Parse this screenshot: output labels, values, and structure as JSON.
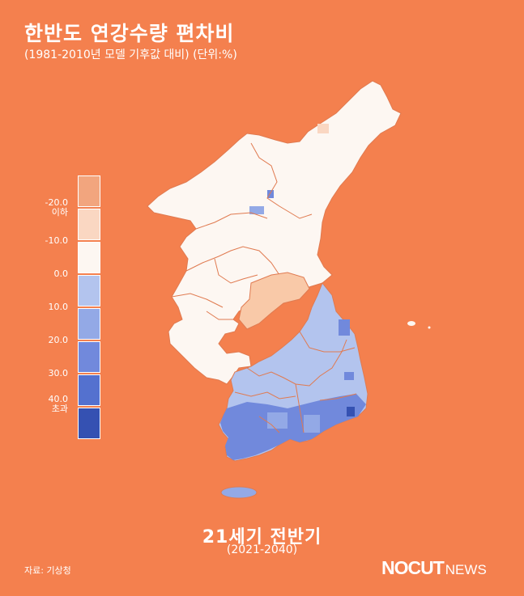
{
  "title": "한반도 연강수량 편차비",
  "subtitle": "(1981-2010년 모델 기후값 대비) (단위:%)",
  "legend": {
    "colors": [
      "#F2A57E",
      "#FAD7C2",
      "#FDF7F2",
      "#B3C4EE",
      "#93A9E6",
      "#7189DC",
      "#5471CF",
      "#3551B2"
    ],
    "labels": [
      {
        "text": "-20.0",
        "sub": "이하"
      },
      {
        "text": "-10.0",
        "sub": ""
      },
      {
        "text": "0.0",
        "sub": ""
      },
      {
        "text": "10.0",
        "sub": ""
      },
      {
        "text": "20.0",
        "sub": ""
      },
      {
        "text": "30.0",
        "sub": ""
      },
      {
        "text": "40.0",
        "sub": "초과"
      }
    ]
  },
  "period": "21세기 전반기",
  "years": "(2021-2040)",
  "source": "자료: 기상청",
  "logo": {
    "bold": "NOCUT",
    "light": "NEWS"
  }
}
